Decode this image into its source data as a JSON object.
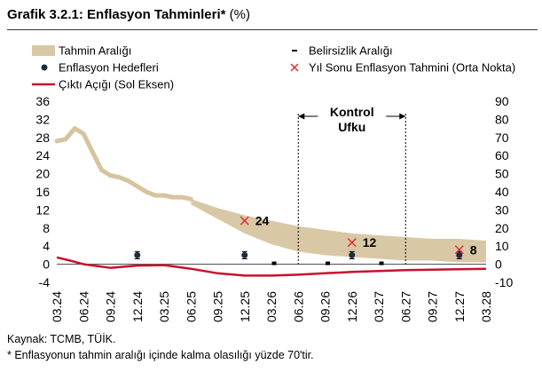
{
  "header": {
    "title": "Grafik 3.2.1: Enflasyon Tahminleri*",
    "unit": "(%)"
  },
  "footer": {
    "source": "Kaynak: TCMB, TÜİK.",
    "note": "* Enflasyonun tahmin aralığı içinde kalma olasılığı yüzde 70'tir."
  },
  "chart_data": {
    "type": "line",
    "legend": {
      "placement": "top",
      "items": [
        {
          "name": "Tahmin Aralığı",
          "symbol": "band"
        },
        {
          "name": "Belirsizlik Aralığı",
          "symbol": "dash"
        },
        {
          "name": "Enflasyon Hedefleri",
          "symbol": "dot"
        },
        {
          "name": "Yıl Sonu Enflasyon Tahmini (Orta Nokta)",
          "symbol": "cross"
        },
        {
          "name": "Çıktı Açığı (Sol Eksen)",
          "symbol": "line"
        }
      ]
    },
    "x_ticks": [
      "03.24",
      "06.24",
      "09.24",
      "12.24",
      "03.25",
      "06.25",
      "09.25",
      "12.25",
      "03.26",
      "06.26",
      "09.26",
      "12.26",
      "03.27",
      "06.27",
      "09.27",
      "12.27",
      "03.28"
    ],
    "left_axis": {
      "ylim": [
        -4,
        36
      ],
      "ticks": [
        -4,
        0,
        4,
        8,
        12,
        16,
        20,
        24,
        28,
        32,
        36
      ]
    },
    "right_axis": {
      "ylim": [
        -10,
        90
      ],
      "ticks": [
        -10,
        0,
        10,
        20,
        30,
        40,
        50,
        60,
        70,
        80,
        90
      ]
    },
    "control_horizon": {
      "label_line1": "Kontrol",
      "label_line2": "Ufku",
      "start": "06.26",
      "end": "06.27"
    },
    "inflation_history": {
      "axis": "right",
      "x": [
        0,
        0.33,
        0.67,
        1,
        1.33,
        1.67,
        2,
        2.33,
        2.67,
        3,
        3.33,
        3.67,
        4,
        4.33,
        4.67,
        5
      ],
      "y": [
        68,
        69,
        75,
        72,
        62,
        52,
        49,
        48,
        46,
        43,
        40,
        38,
        38,
        37,
        37,
        36
      ]
    },
    "forecast_band": {
      "axis": "right",
      "x": [
        5,
        6,
        7,
        8,
        9,
        10,
        11,
        12,
        13,
        14,
        15,
        16
      ],
      "upper": [
        36,
        31,
        27,
        24,
        21,
        19,
        17,
        16,
        15,
        14,
        14,
        13
      ],
      "lower": [
        33,
        25,
        17,
        11,
        7,
        5,
        4,
        3,
        2,
        2,
        1,
        1
      ]
    },
    "inflation_targets": {
      "axis": "left",
      "points": [
        {
          "x": "12.24",
          "value": 2,
          "err": 0.8
        },
        {
          "x": "12.25",
          "value": 2,
          "err": 0.8
        },
        {
          "x": "12.26",
          "value": 2,
          "err": 0.8
        },
        {
          "x": "12.27",
          "value": 2,
          "err": 0.8
        }
      ]
    },
    "year_end_forecasts": {
      "axis": "right",
      "points": [
        {
          "x": "12.25",
          "value": 24,
          "label": "24"
        },
        {
          "x": "12.26",
          "value": 12,
          "label": "12"
        },
        {
          "x": "12.27",
          "value": 8,
          "label": "8"
        }
      ]
    },
    "uncertainty_markers": {
      "axis": "left",
      "points": [
        {
          "x": 8.1,
          "value": 0.2
        },
        {
          "x": 10.1,
          "value": 0.2
        },
        {
          "x": 12.1,
          "value": 0.2
        }
      ]
    },
    "output_gap": {
      "axis": "left",
      "x": [
        0,
        0.5,
        1,
        2,
        3,
        4,
        5,
        6,
        7,
        8,
        9,
        10,
        11,
        12,
        13,
        14,
        15,
        16
      ],
      "y": [
        1.5,
        0.8,
        0,
        -0.8,
        -0.3,
        -0.2,
        -1.0,
        -2.0,
        -2.5,
        -2.5,
        -2.3,
        -2.0,
        -1.7,
        -1.5,
        -1.3,
        -1.2,
        -1.1,
        -1.0
      ]
    },
    "colors": {
      "band": "#d9c8a6",
      "history": "#d7c39e",
      "output_gap": "#c8102e",
      "target": "#1f2a44",
      "forecast_cross": "#d92b2b",
      "zero_line": "#444444"
    }
  }
}
